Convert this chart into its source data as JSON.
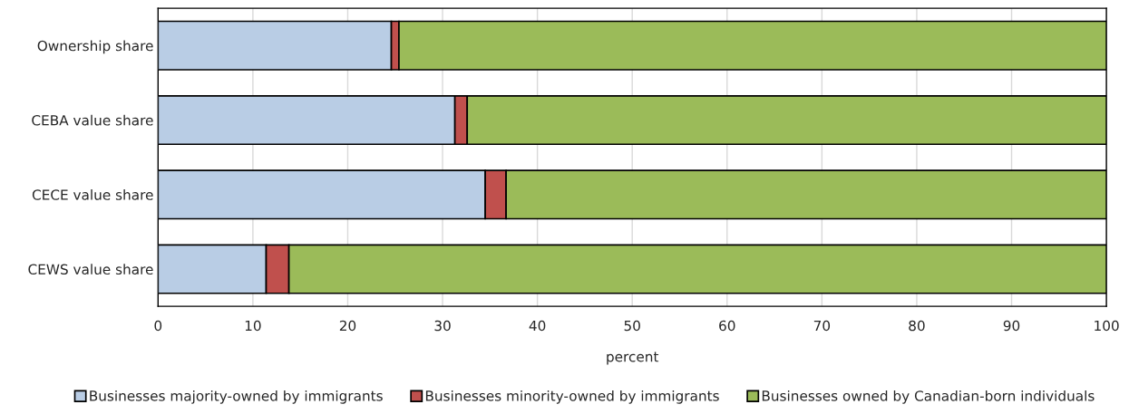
{
  "chart_data": {
    "type": "bar",
    "orientation": "horizontal",
    "stacked": true,
    "xlabel": "percent",
    "categories": [
      "Ownership share",
      "CEBA value share",
      "CECE value share",
      "CEWS value share"
    ],
    "series": [
      {
        "name": "Businesses majority-owned by immigrants",
        "color": "#b9cde5",
        "values": [
          24.6,
          31.3,
          34.5,
          11.4
        ]
      },
      {
        "name": "Businesses minority-owned by immigrants",
        "color": "#c0504d",
        "values": [
          0.8,
          1.3,
          2.2,
          2.4
        ]
      },
      {
        "name": "Businesses owned by Canadian-born individuals",
        "color": "#9bbb59",
        "values": [
          74.6,
          67.4,
          63.3,
          86.2
        ]
      }
    ],
    "xlim": [
      0,
      100
    ],
    "xticks": [
      0,
      10,
      20,
      30,
      40,
      50,
      60,
      70,
      80,
      90,
      100
    ],
    "grid": "x",
    "legend": "bottom"
  }
}
